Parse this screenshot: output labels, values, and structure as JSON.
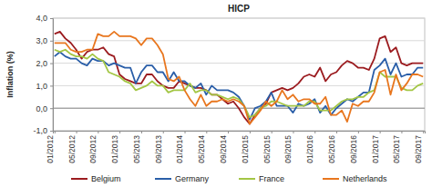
{
  "chart_data": {
    "type": "line",
    "title": "HICP",
    "y_label": "Inflation (%)",
    "categories": [
      "01/2012",
      null,
      null,
      null,
      "05/2012",
      null,
      null,
      null,
      "09/2012",
      null,
      null,
      null,
      "01/2013",
      null,
      null,
      null,
      "05/2013",
      null,
      null,
      null,
      "09/2013",
      null,
      null,
      null,
      "01/2014",
      null,
      null,
      null,
      "05/2014",
      null,
      null,
      null,
      "09/2014",
      null,
      null,
      null,
      "01/2015",
      null,
      null,
      null,
      "05/2015",
      null,
      null,
      null,
      "09/2015",
      null,
      null,
      null,
      "01/2016",
      null,
      null,
      null,
      "05/2016",
      null,
      null,
      null,
      "09/2016",
      null,
      null,
      null,
      "01/2017",
      null,
      null,
      null,
      "05/2017",
      null,
      null,
      null,
      "09/2017"
    ],
    "series": [
      {
        "name": "Belgium",
        "color": "#9b1b1f",
        "values": [
          3.3,
          3.4,
          3.1,
          2.9,
          2.6,
          2.2,
          2.5,
          2.6,
          2.6,
          2.7,
          2.4,
          2.3,
          1.5,
          1.3,
          1.2,
          1.1,
          1.1,
          1.5,
          1.5,
          1.2,
          1.0,
          0.9,
          0.9,
          1.2,
          1.1,
          1.0,
          0.9,
          0.9,
          0.8,
          0.6,
          0.6,
          0.4,
          0.2,
          0.3,
          0.0,
          -0.4,
          -0.7,
          -0.3,
          0.0,
          0.2,
          0.7,
          0.8,
          0.9,
          0.8,
          0.9,
          1.1,
          1.4,
          1.5,
          1.4,
          1.8,
          1.2,
          1.5,
          1.6,
          1.9,
          2.1,
          2.0,
          1.8,
          1.8,
          1.7,
          2.2,
          3.1,
          3.2,
          2.5,
          2.7,
          2.0,
          1.9,
          2.0,
          2.0,
          2.0
        ]
      },
      {
        "name": "Germany",
        "color": "#2a5ea8",
        "values": [
          2.3,
          2.5,
          2.3,
          2.2,
          2.2,
          2.0,
          1.9,
          2.2,
          2.1,
          2.1,
          1.9,
          2.0,
          1.9,
          1.8,
          1.8,
          1.1,
          1.6,
          1.9,
          1.9,
          1.6,
          1.6,
          1.2,
          1.6,
          1.2,
          1.2,
          1.0,
          0.9,
          1.1,
          0.6,
          1.0,
          0.8,
          0.8,
          0.8,
          0.7,
          0.5,
          0.1,
          -0.5,
          0.0,
          0.1,
          0.3,
          0.7,
          0.1,
          0.1,
          0.1,
          -0.2,
          0.2,
          0.1,
          0.2,
          0.4,
          -0.2,
          0.1,
          -0.3,
          0.0,
          0.2,
          0.4,
          0.3,
          0.5,
          0.7,
          0.7,
          1.7,
          1.9,
          2.2,
          1.5,
          2.0,
          1.4,
          1.5,
          1.5,
          1.8,
          1.8
        ]
      },
      {
        "name": "France",
        "color": "#a3c644",
        "values": [
          2.6,
          2.5,
          2.6,
          2.4,
          2.3,
          2.3,
          2.2,
          2.4,
          2.2,
          2.1,
          1.6,
          1.5,
          1.4,
          1.2,
          1.1,
          0.8,
          0.9,
          1.0,
          1.2,
          1.0,
          1.0,
          0.7,
          0.8,
          0.8,
          0.8,
          1.1,
          0.7,
          0.8,
          0.8,
          0.6,
          0.6,
          0.5,
          0.4,
          0.5,
          0.4,
          0.1,
          -0.4,
          -0.3,
          0.0,
          0.1,
          0.3,
          0.3,
          0.2,
          0.1,
          0.1,
          0.1,
          0.1,
          0.3,
          0.3,
          -0.1,
          -0.1,
          -0.1,
          0.1,
          0.3,
          0.4,
          0.4,
          0.5,
          0.5,
          0.7,
          0.8,
          1.6,
          1.4,
          1.4,
          1.4,
          0.9,
          0.8,
          0.8,
          1.0,
          1.1
        ]
      },
      {
        "name": "Netherlands",
        "color": "#e8761e",
        "values": [
          2.9,
          2.9,
          2.9,
          2.6,
          2.5,
          2.5,
          2.6,
          2.6,
          3.3,
          3.2,
          3.2,
          3.4,
          3.2,
          3.2,
          3.2,
          3.1,
          2.8,
          3.1,
          3.1,
          2.8,
          2.4,
          1.3,
          1.2,
          1.4,
          0.8,
          0.4,
          0.1,
          0.6,
          0.1,
          0.3,
          0.3,
          0.4,
          0.3,
          0.4,
          0.3,
          0.1,
          -0.7,
          -0.4,
          -0.1,
          0.3,
          0.1,
          0.3,
          0.8,
          0.4,
          0.6,
          0.3,
          0.4,
          0.4,
          0.2,
          0.2,
          0.5,
          -0.3,
          -0.3,
          -0.1,
          -0.6,
          0.2,
          0.1,
          0.3,
          0.3,
          0.7,
          1.6,
          1.7,
          0.6,
          1.5,
          0.8,
          1.1,
          1.5,
          1.5,
          1.4
        ]
      }
    ],
    "ylim": [
      -1,
      4
    ],
    "yticks": [
      {
        "value": -1,
        "label": "-1,0"
      },
      {
        "value": 0,
        "label": "0,0"
      },
      {
        "value": 1,
        "label": "1,0"
      },
      {
        "value": 2,
        "label": "2,0"
      },
      {
        "value": 3,
        "label": "3,0"
      },
      {
        "value": 4,
        "label": "4,0"
      }
    ],
    "grid": true,
    "legend": "bottom"
  }
}
